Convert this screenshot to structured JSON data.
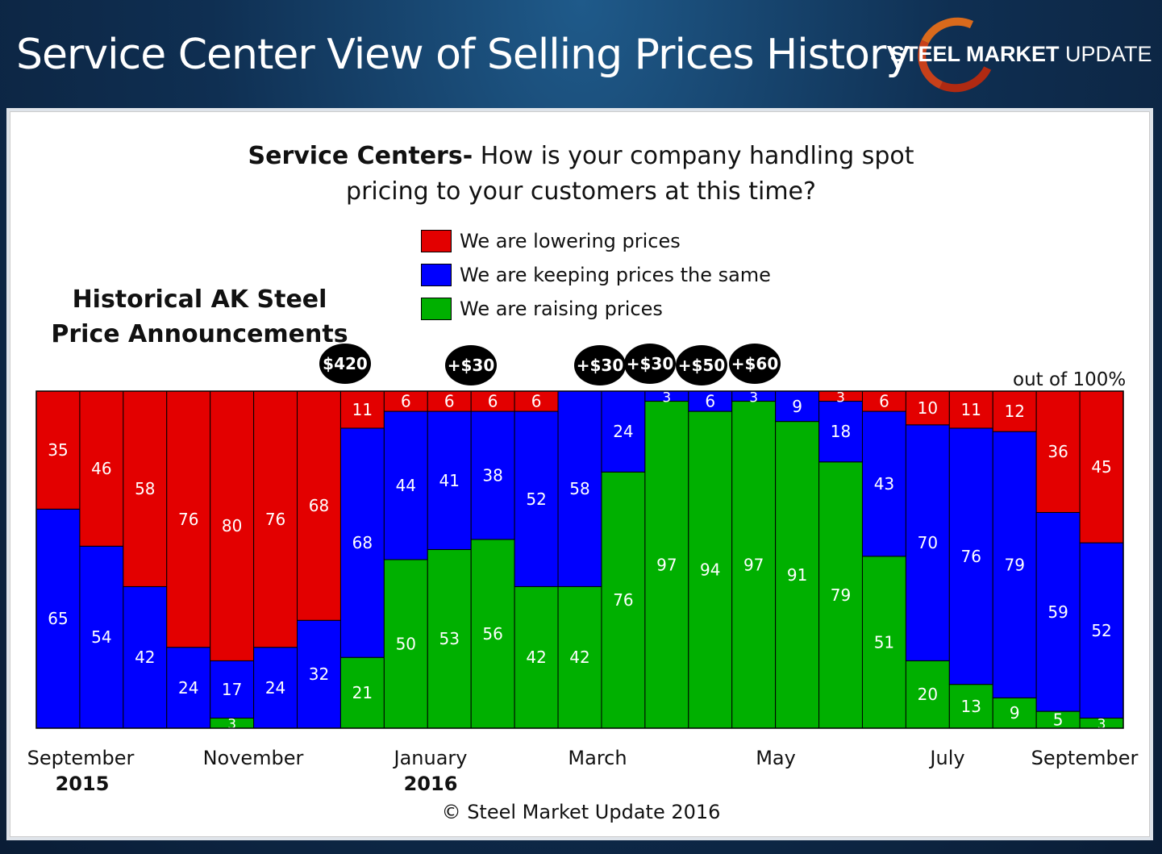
{
  "header": {
    "title": "Service Center View of Selling Prices History",
    "logo_bold": "STEEL MARKET",
    "logo_light": "UPDATE"
  },
  "question": {
    "bold": "Service Centers-",
    "line1": "How is your company handling spot",
    "line2": "pricing to your customers at this time?"
  },
  "ak_title": {
    "line1": "Historical AK Steel",
    "line2": "Price Announcements"
  },
  "announcements": [
    "$420",
    "+$30",
    "+$30",
    "+$30",
    "+$50",
    "+$60"
  ],
  "out_of_label": "out of 100%",
  "x_labels": [
    "September",
    "November",
    "January",
    "March",
    "May",
    "July",
    "September"
  ],
  "year_labels": [
    "2015",
    "2016"
  ],
  "copyright": "© Steel Market Update 2016",
  "colors": {
    "lowering": "#e30000",
    "same": "#0000ff",
    "raising": "#00b000"
  },
  "chart_data": {
    "type": "bar",
    "stacked": true,
    "ylim": [
      0,
      100
    ],
    "legend": [
      "We are lowering prices",
      "We are keeping prices the same",
      "We are raising prices"
    ],
    "x_tick_labels": [
      "September",
      "November",
      "January",
      "March",
      "May",
      "July",
      "September"
    ],
    "series": [
      {
        "name": "We are raising prices",
        "values": [
          0,
          0,
          0,
          0,
          3,
          0,
          0,
          21,
          50,
          53,
          56,
          42,
          42,
          76,
          97,
          94,
          97,
          91,
          79,
          51,
          20,
          13,
          9,
          5,
          3
        ]
      },
      {
        "name": "We are keeping prices the same",
        "values": [
          65,
          54,
          42,
          24,
          17,
          24,
          32,
          68,
          44,
          41,
          38,
          52,
          58,
          24,
          3,
          6,
          3,
          9,
          18,
          43,
          70,
          76,
          79,
          59,
          52
        ]
      },
      {
        "name": "We are lowering prices",
        "values": [
          35,
          46,
          58,
          76,
          80,
          76,
          68,
          11,
          6,
          6,
          6,
          6,
          0,
          0,
          0,
          0,
          0,
          0,
          3,
          6,
          10,
          11,
          12,
          36,
          45
        ]
      }
    ]
  }
}
